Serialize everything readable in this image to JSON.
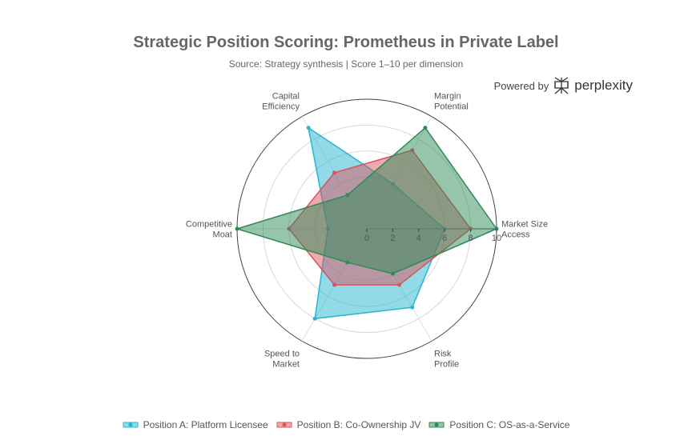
{
  "header": {
    "title": "Strategic Position Scoring: Prometheus in Private Label",
    "subtitle": "Source: Strategy synthesis | Score 1–10 per dimension"
  },
  "branding": {
    "powered_by": "Powered by",
    "brand_name": "perplexity",
    "icon": "perplexity-logo-icon"
  },
  "chart_data": {
    "type": "radar",
    "title": "Strategic Position Scoring: Prometheus in Private Label",
    "subtitle": "Source: Strategy synthesis | Score 1–10 per dimension",
    "categories": [
      [
        "Market Size",
        "Access"
      ],
      [
        "Margin",
        "Potential"
      ],
      [
        "Capital",
        "Efficiency"
      ],
      [
        "Competitive",
        "Moat"
      ],
      [
        "Speed to",
        "Market"
      ],
      [
        "Risk",
        "Profile"
      ]
    ],
    "radial_range": [
      0,
      10
    ],
    "radial_ticks": [
      0,
      2,
      4,
      6,
      8,
      10
    ],
    "grid": true,
    "legend_position": "bottom",
    "series": [
      {
        "name": "Position A: Platform Licensee",
        "color": "#25b6d1",
        "values": [
          6,
          4,
          9,
          3,
          8,
          7
        ]
      },
      {
        "name": "Position B: Co-Ownership JV",
        "color": "#d9535d",
        "values": [
          8,
          7,
          5,
          6,
          5,
          5
        ]
      },
      {
        "name": "Position C: OS-as-a-Service",
        "color": "#2e8b57",
        "values": [
          10,
          9,
          3,
          10,
          3,
          4
        ]
      }
    ]
  }
}
